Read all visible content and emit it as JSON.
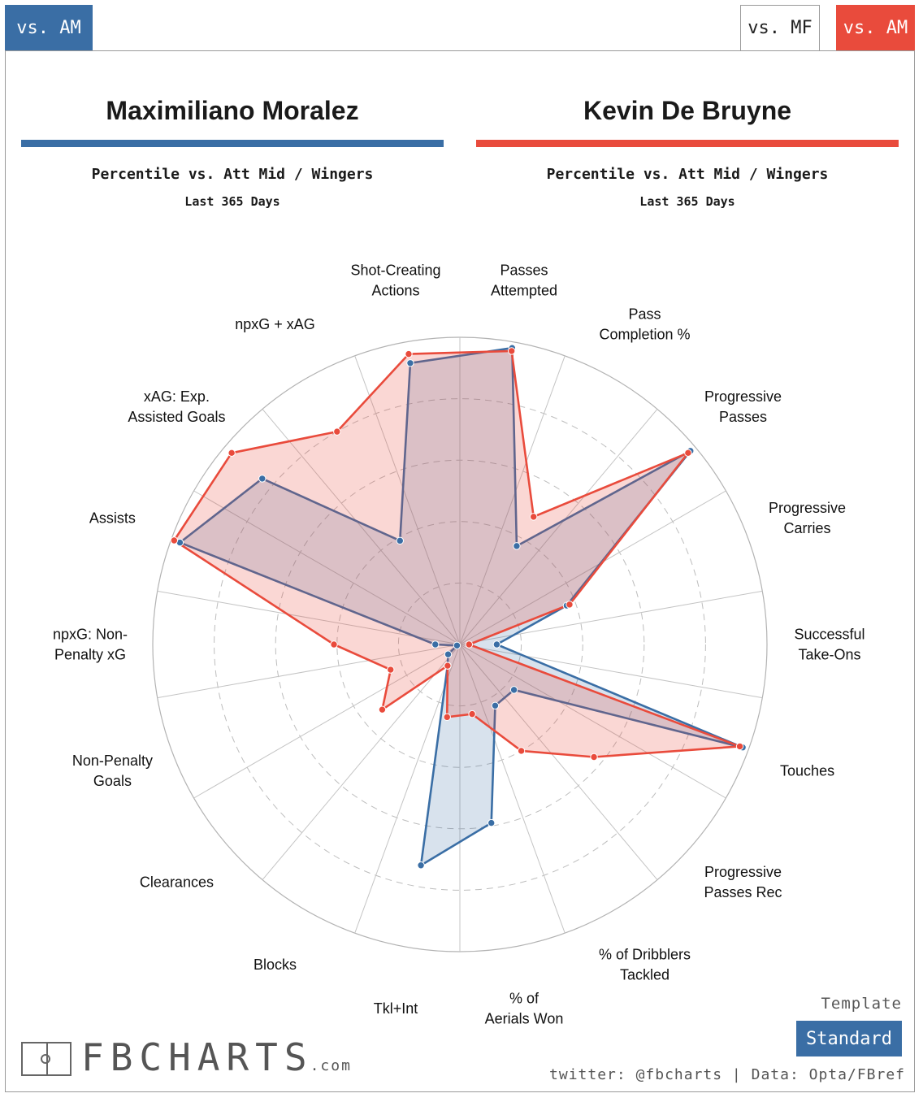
{
  "tabs": {
    "left": "vs. AM",
    "mf": "vs. MF",
    "am": "vs. AM"
  },
  "players": [
    {
      "name": "Maximiliano Moralez",
      "color": "#3a6ea5",
      "subtitle": "Percentile vs. Att Mid / Wingers",
      "period": "Last 365 Days"
    },
    {
      "name": "Kevin De Bruyne",
      "color": "#e94b3c",
      "subtitle": "Percentile vs. Att Mid / Wingers",
      "period": "Last 365 Days"
    }
  ],
  "chart_data": {
    "type": "radar",
    "range": [
      0,
      100
    ],
    "axes": [
      "Passes Attempted",
      "Pass Completion %",
      "Progressive Passes",
      "Progressive Carries",
      "Successful Take-Ons",
      "Touches",
      "Progressive Passes Rec",
      "% of Dribblers Tackled",
      "% of Aerials Won",
      "Tkl+Int",
      "Blocks",
      "Clearances",
      "Non-Penalty Goals",
      "npxG: Non-Penalty xG",
      "Assists",
      "xAG: Exp. Assisted Goals",
      "npxG + xAG",
      "Shot-Creating Actions"
    ],
    "series": [
      {
        "name": "Maximiliano Moralez",
        "color": "#3a6ea5",
        "values": [
          98,
          37,
          98,
          37,
          12,
          98,
          23,
          23,
          59,
          73,
          8,
          5,
          1,
          8,
          97,
          84,
          39,
          93
        ]
      },
      {
        "name": "Kevin De Bruyne",
        "color": "#e94b3c",
        "values": [
          97,
          48,
          97,
          38,
          3,
          97,
          57,
          40,
          23,
          24,
          8,
          33,
          24,
          41,
          99,
          97,
          80,
          96
        ]
      }
    ]
  },
  "footer": {
    "logo_text": "FBCHARTS",
    "logo_suffix": ".com",
    "template_label": "Template",
    "template_value": "Standard",
    "credits": "twitter: @fbcharts | Data: Opta/FBref"
  }
}
